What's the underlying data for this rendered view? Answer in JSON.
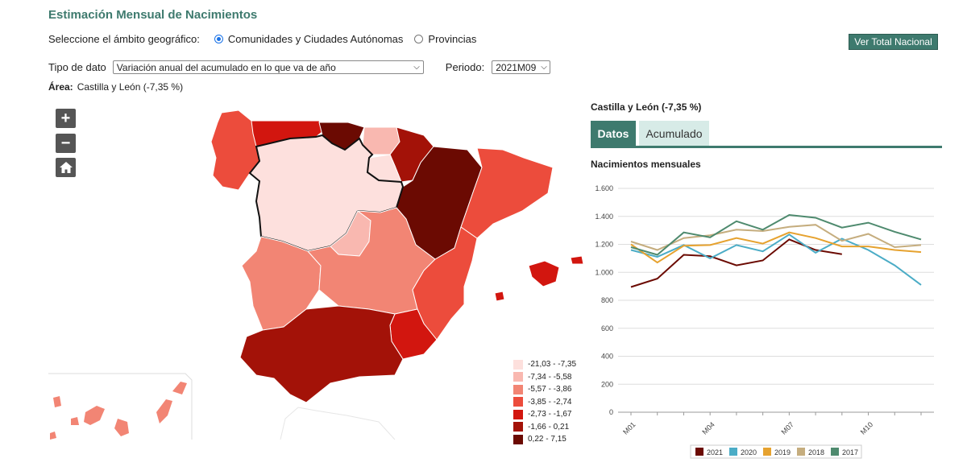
{
  "header": {
    "title": "Estimación Mensual de Nacimientos"
  },
  "scope": {
    "label": "Seleccione el ámbito geográfico:",
    "options": [
      "Comunidades y Ciudades Autónomas",
      "Provincias"
    ],
    "selected": "Comunidades y Ciudades Autónomas"
  },
  "national_button": "Ver Total Nacional",
  "filters": {
    "tipo_label": "Tipo de dato",
    "tipo_value": "Variación anual del acumulado en lo que va de año",
    "periodo_label": "Periodo:",
    "periodo_value": "2021M09"
  },
  "area": {
    "label": "Área:",
    "value": "Castilla y León (-7,35 %)"
  },
  "map_controls": {
    "zoom_in": "+",
    "zoom_out": "−"
  },
  "legend": {
    "items": [
      {
        "label": "-21,03 - -7,35",
        "color": "#fde0dd"
      },
      {
        "label": "-7,34 - -5,58",
        "color": "#f9b8b0"
      },
      {
        "label": "-5,57 - -3,86",
        "color": "#f28574"
      },
      {
        "label": "-3,85 - -2,74",
        "color": "#ec4c3c"
      },
      {
        "label": "-2,73 - -1,67",
        "color": "#d2160f"
      },
      {
        "label": "-1,66 - 0,21",
        "color": "#a31208"
      },
      {
        "label": "0,22 - 7,15",
        "color": "#6b0a02"
      }
    ]
  },
  "panel": {
    "title": "Castilla y León (-7,35 %)",
    "tabs": [
      "Datos",
      "Acumulado"
    ],
    "chart_heading": "Nacimientos mensuales"
  },
  "chart_data": {
    "type": "line",
    "title": "Nacimientos mensuales",
    "x": [
      "M01",
      "M02",
      "M03",
      "M04",
      "M05",
      "M06",
      "M07",
      "M08",
      "M09",
      "M10",
      "M11",
      "M12"
    ],
    "x_tick_labels": [
      "M01",
      "M04",
      "M07",
      "M10"
    ],
    "ylim": [
      0,
      1600
    ],
    "y_ticks": [
      0,
      200,
      400,
      600,
      800,
      1000,
      1200,
      1400,
      1600
    ],
    "y_tick_labels": [
      "0",
      "200",
      "400",
      "600",
      "800",
      "1.000",
      "1.200",
      "1.400",
      "1.600"
    ],
    "series": [
      {
        "name": "2021",
        "color": "#6b0a02",
        "values": [
          895,
          955,
          1125,
          1115,
          1050,
          1085,
          1235,
          1160,
          1130,
          null,
          null,
          null
        ]
      },
      {
        "name": "2020",
        "color": "#4bacc6",
        "values": [
          1160,
          1110,
          1195,
          1100,
          1195,
          1150,
          1270,
          1140,
          1240,
          1160,
          1050,
          910
        ]
      },
      {
        "name": "2019",
        "color": "#e6a22f",
        "values": [
          1200,
          1070,
          1190,
          1195,
          1245,
          1205,
          1285,
          1245,
          1185,
          1185,
          1160,
          1145
        ]
      },
      {
        "name": "2018",
        "color": "#c5ad7e",
        "values": [
          1220,
          1160,
          1245,
          1265,
          1305,
          1295,
          1325,
          1340,
          1225,
          1275,
          1180,
          1195
        ]
      },
      {
        "name": "2017",
        "color": "#4e8a6e",
        "values": [
          1180,
          1125,
          1285,
          1250,
          1365,
          1305,
          1410,
          1390,
          1320,
          1355,
          1290,
          1235
        ]
      }
    ]
  }
}
